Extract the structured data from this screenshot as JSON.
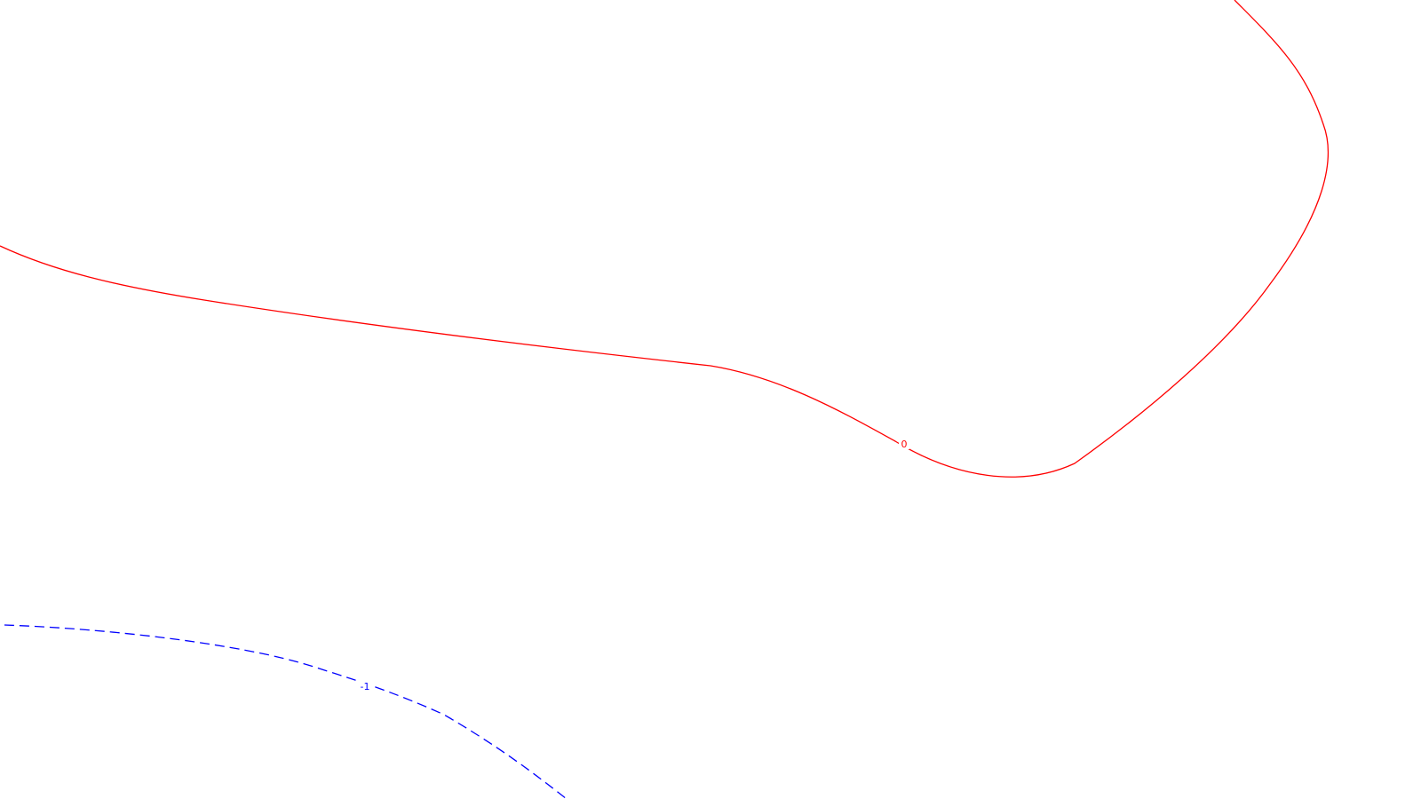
{
  "contours": [
    {
      "label": "0",
      "color": "#ff0000",
      "style": "solid"
    },
    {
      "label": "-1",
      "color": "#0000ff",
      "style": "dashed"
    }
  ]
}
